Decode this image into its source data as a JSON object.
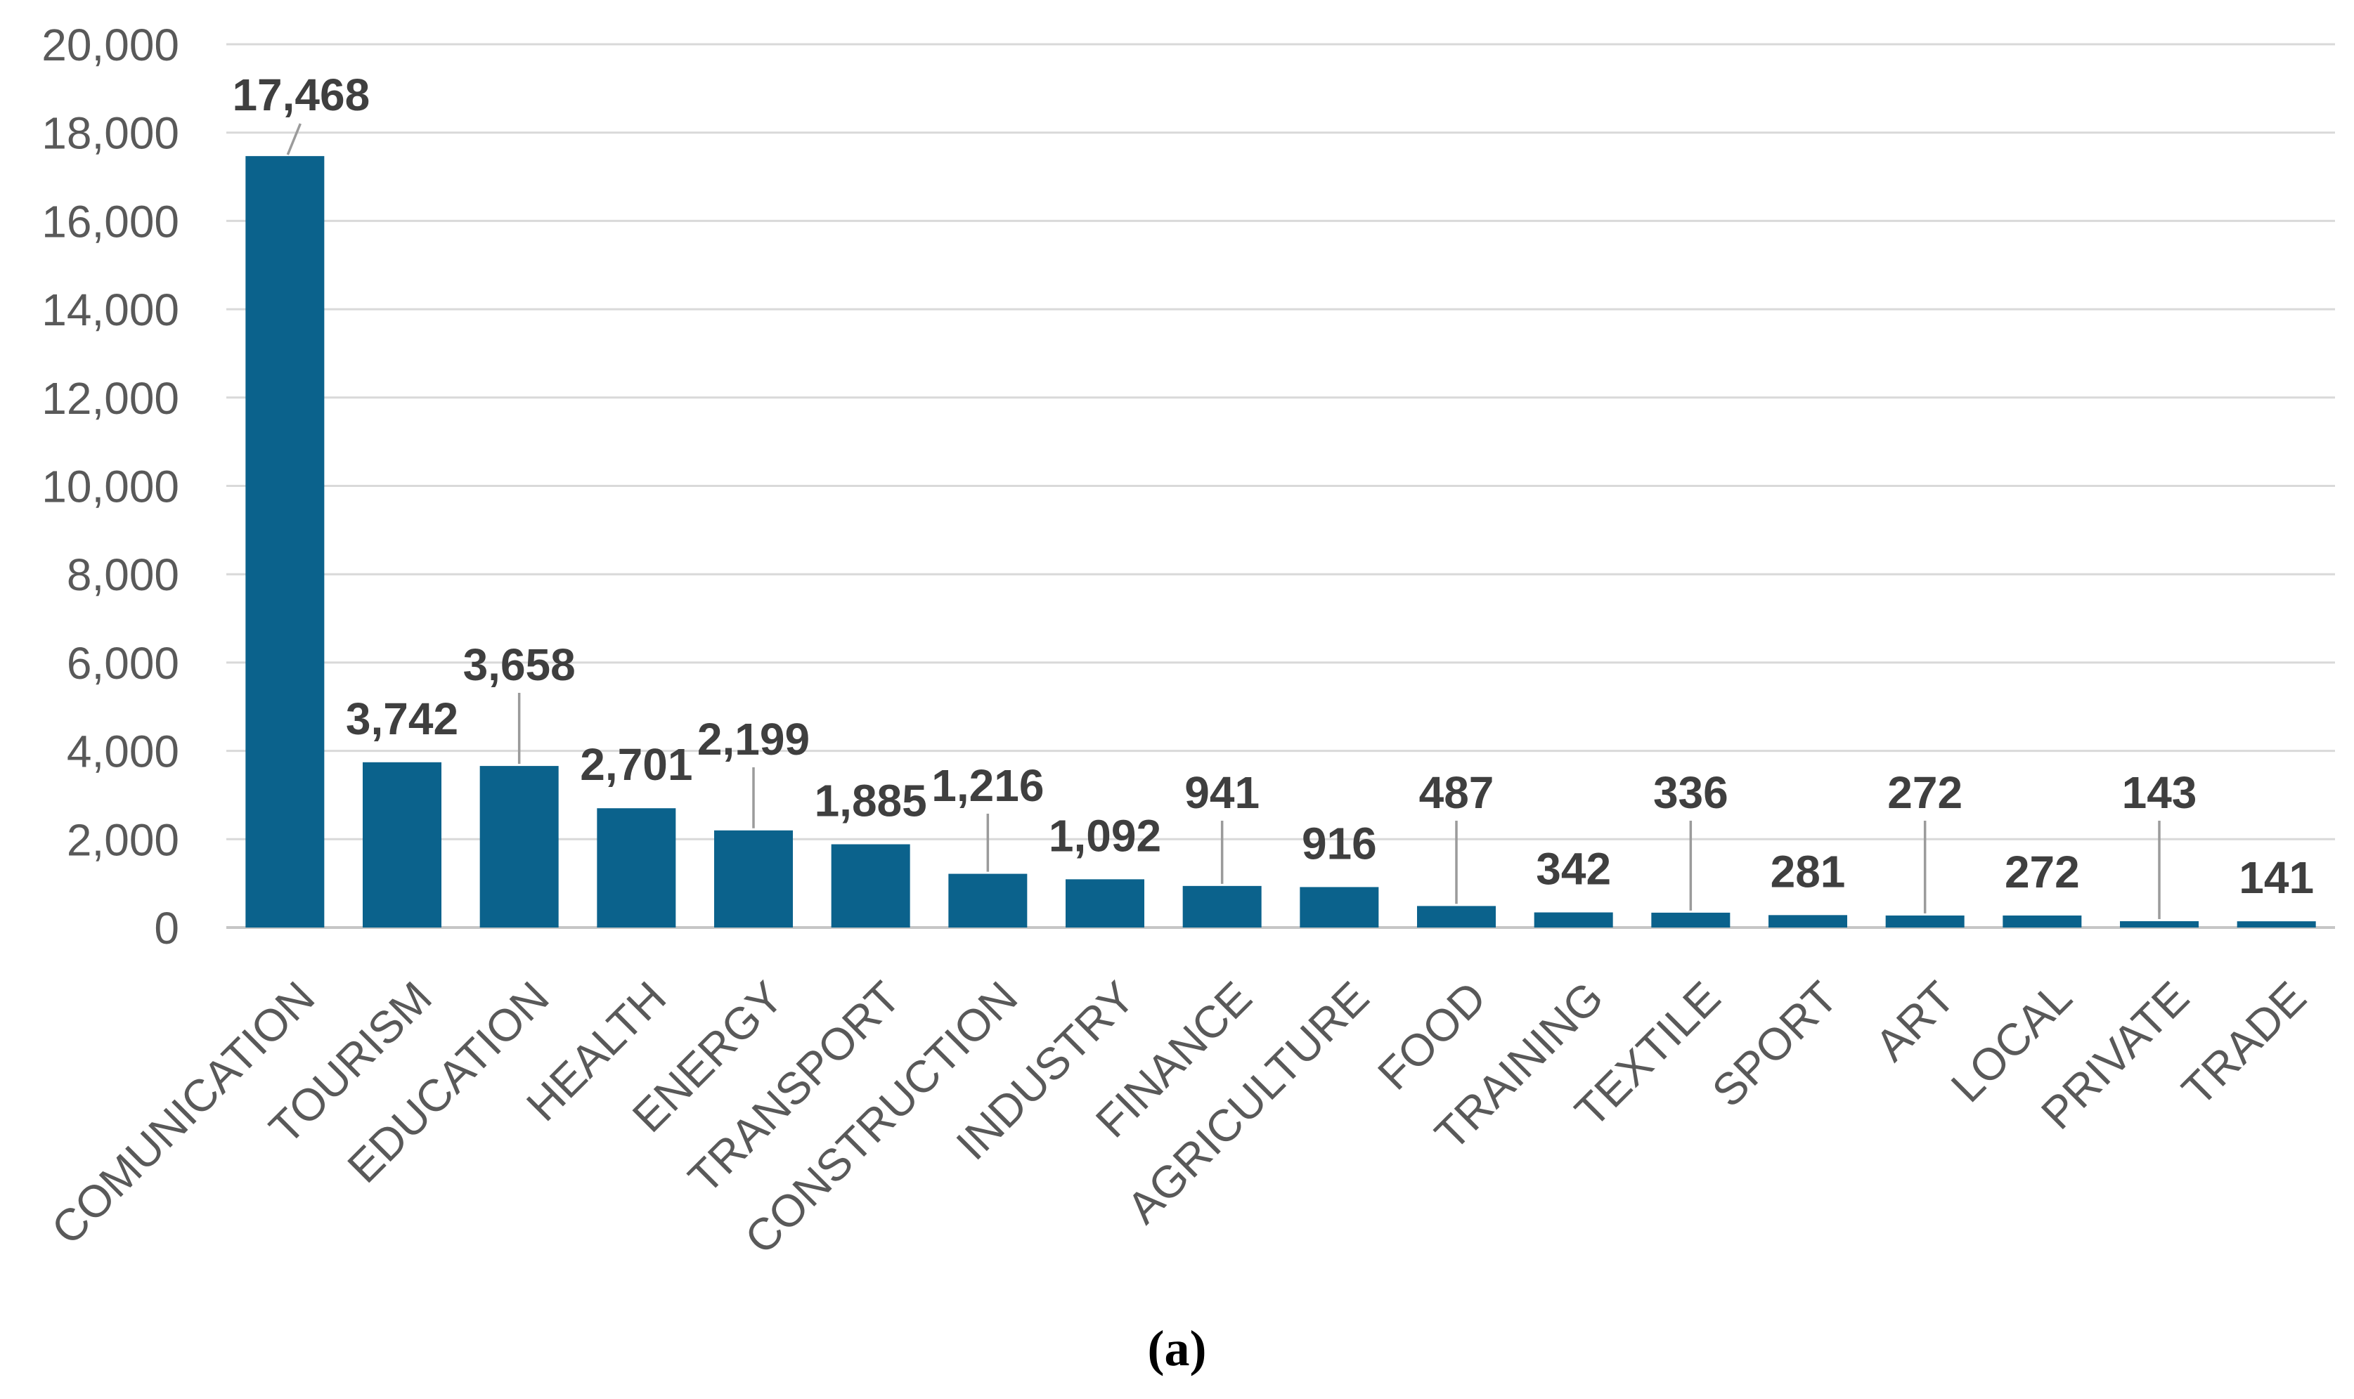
{
  "figure": {
    "caption": "(a)"
  },
  "chart_data": {
    "type": "bar",
    "title": "",
    "xlabel": "",
    "ylabel": "",
    "categories": [
      "COMUNICATION",
      "TOURISM",
      "EDUCATION",
      "HEALTH",
      "ENERGY",
      "TRANSPORT",
      "CONSTRUCTION",
      "INDUSTRY",
      "FINANCE",
      "AGRICULTURE",
      "FOOD",
      "TRAINING",
      "TEXTILE",
      "SPORT",
      "ART",
      "LOCAL",
      "PRIVATE",
      "TRADE"
    ],
    "values": [
      17468,
      3742,
      3658,
      2701,
      2199,
      1885,
      1216,
      1092,
      941,
      916,
      487,
      342,
      336,
      281,
      272,
      272,
      143,
      141
    ],
    "data_labels": [
      "17,468",
      "3,742",
      "3,658",
      "2,701",
      "2,199",
      "1,885",
      "1,216",
      "1,092",
      "941",
      "916",
      "487",
      "342",
      "336",
      "281",
      "272",
      "272",
      "143",
      "141"
    ],
    "callout_labels": [
      true,
      false,
      true,
      false,
      true,
      false,
      true,
      false,
      true,
      false,
      true,
      false,
      true,
      false,
      true,
      false,
      true,
      false
    ],
    "ylim": [
      0,
      20000
    ],
    "ytick_step": 2000,
    "ytick_labels": [
      "0",
      "2,000",
      "4,000",
      "6,000",
      "8,000",
      "10,000",
      "12,000",
      "14,000",
      "16,000",
      "18,000",
      "20,000"
    ],
    "grid": "horizontal",
    "legend": "none",
    "x_label_rotation_deg": -45,
    "bar_color": "#0B628C",
    "value_label_color": "#3F3F3F",
    "axis_text_color": "#595959",
    "gridline_color": "#D9D9D9",
    "axis_line_color": "#C6C6C6",
    "leader_line_color": "#9B9B9B",
    "background_color": "#FFFFFF"
  }
}
